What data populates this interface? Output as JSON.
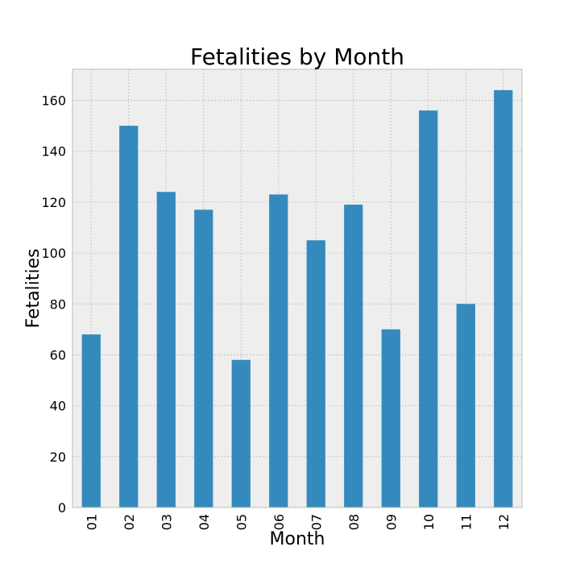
{
  "chart_data": {
    "type": "bar",
    "title": "Fetalities by Month",
    "xlabel": "Month",
    "ylabel": "Fetalities",
    "categories": [
      "01",
      "02",
      "03",
      "04",
      "05",
      "06",
      "07",
      "08",
      "09",
      "10",
      "11",
      "12"
    ],
    "values": [
      68,
      150,
      124,
      117,
      58,
      123,
      105,
      119,
      70,
      156,
      80,
      164
    ],
    "ylim": [
      0,
      172.2
    ],
    "yticks": [
      0,
      20,
      40,
      60,
      80,
      100,
      120,
      140,
      160
    ],
    "grid": true,
    "legend": "none",
    "colors": {
      "bar": "#348ABD",
      "plot_background": "#EEEEEE",
      "grid": "#BBBBBB",
      "frame": "#BCBCBC"
    }
  }
}
